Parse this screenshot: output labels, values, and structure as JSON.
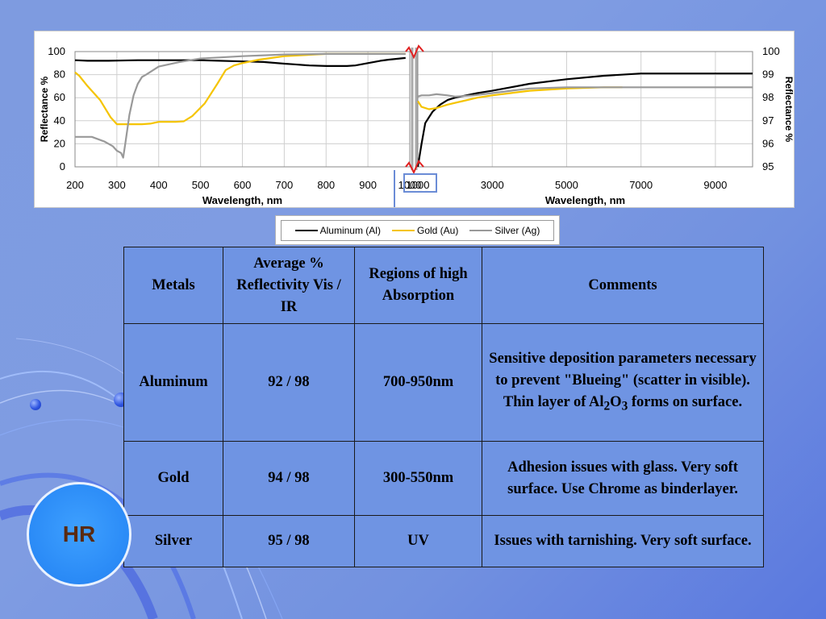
{
  "chart_data": {
    "type": "line",
    "panels": [
      {
        "xlabel": "Wavelength, nm",
        "ylabel": "Reflectance %",
        "xlim": [
          200,
          1000
        ],
        "ylim": [
          0,
          100
        ],
        "x_ticks": [
          "200",
          "300",
          "400",
          "500",
          "600",
          "700",
          "800",
          "900",
          "1000"
        ],
        "y_ticks": [
          "0",
          "20",
          "40",
          "60",
          "80",
          "100"
        ],
        "series": [
          {
            "name": "Aluminum (Al)",
            "color": "#000000",
            "x": [
              200,
              230,
              280,
              350,
              400,
              500,
              600,
              650,
              700,
              720,
              760,
              800,
              850,
              870,
              900,
              930,
              950,
              990
            ],
            "y": [
              92.5,
              92,
              92,
              92.5,
              92.5,
              92.5,
              91.5,
              91,
              89.5,
              89,
              88,
              87.5,
              87.5,
              88,
              90,
              92,
              93,
              94.5
            ]
          },
          {
            "name": "Gold (Au)",
            "color": "#f5c400",
            "x": [
              200,
              210,
              230,
              260,
              285,
              300,
              330,
              360,
              380,
              400,
              440,
              460,
              480,
              510,
              540,
              560,
              580,
              600,
              640,
              700,
              800,
              900,
              990
            ],
            "y": [
              82,
              79,
              70,
              58,
              43,
              37,
              37,
              37,
              37.5,
              39,
              39,
              39.5,
              44,
              55,
              72,
              84,
              88,
              90,
              93,
              96,
              98,
              98,
              98
            ]
          },
          {
            "name": "Silver (Ag)",
            "color": "#999999",
            "x": [
              200,
              240,
              270,
              290,
              300,
              310,
              315,
              320,
              330,
              340,
              350,
              360,
              370,
              400,
              450,
              500,
              600,
              700,
              800,
              900,
              990
            ],
            "y": [
              26,
              26,
              22,
              18,
              14,
              12,
              8,
              20,
              45,
              62,
              72,
              78,
              80,
              87,
              91,
              94,
              96,
              97.5,
              98,
              98,
              98
            ]
          }
        ]
      },
      {
        "xlabel": "Wavelength, nm",
        "ylabel": "Reflectance %",
        "xlim": [
          1000,
          10000
        ],
        "ylim": [
          95,
          100
        ],
        "x_ticks": [
          "1000",
          "3000",
          "5000",
          "7000",
          "9000"
        ],
        "y_ticks": [
          "95",
          "96",
          "97",
          "98",
          "99",
          "100"
        ],
        "series": [
          {
            "name": "Aluminum (Al)",
            "color": "#000000",
            "x": [
              1000,
              1100,
              1200,
              1400,
              1600,
              1800,
              2000,
              2300,
              2600,
              3000,
              3500,
              4000,
              5000,
              6000,
              7000,
              8000,
              9000,
              10000
            ],
            "y": [
              95.0,
              96.0,
              96.9,
              97.4,
              97.7,
              97.9,
              98.0,
              98.1,
              98.2,
              98.3,
              98.45,
              98.6,
              98.8,
              98.95,
              99.05,
              99.05,
              99.05,
              99.05
            ]
          },
          {
            "name": "Gold (Au)",
            "color": "#f5c400",
            "x": [
              1000,
              1100,
              1300,
              1500,
              1800,
              2200,
              2600,
              3000,
              3500,
              4000,
              5000,
              6000,
              6500
            ],
            "y": [
              97.85,
              97.6,
              97.5,
              97.55,
              97.7,
              97.85,
              98.0,
              98.1,
              98.2,
              98.3,
              98.4,
              98.45,
              98.45
            ]
          },
          {
            "name": "Silver (Ag)",
            "color": "#999999",
            "x": [
              1000,
              1100,
              1300,
              1500,
              1800,
              2000,
              2500,
              3000,
              3500,
              4000,
              5000,
              6000,
              7000,
              8000,
              9000,
              10000
            ],
            "y": [
              98.05,
              98.1,
              98.1,
              98.15,
              98.1,
              98.05,
              98.1,
              98.2,
              98.3,
              98.4,
              98.45,
              98.45,
              98.45,
              98.45,
              98.45,
              98.45
            ]
          }
        ]
      }
    ]
  },
  "legend": [
    {
      "label": "Aluminum (Al)",
      "color": "#000000"
    },
    {
      "label": "Gold (Au)",
      "color": "#f5c400"
    },
    {
      "label": "Silver (Ag)",
      "color": "#999999"
    }
  ],
  "table": {
    "headers": {
      "metals": "Metals",
      "reflectivity": "Average % Reflectivity Vis / IR",
      "absorption": "Regions of high Absorption",
      "comments": "Comments"
    },
    "rows": [
      {
        "metal": "Aluminum",
        "reflectivity": "92 / 98",
        "absorption": "700-950nm",
        "comment_a": "Sensitive deposition parameters necessary to prevent \"Blueing\" (scatter in visible). Thin layer of Al",
        "sub1": "2",
        "comment_b": "O",
        "sub2": "3",
        "comment_c": " forms on surface."
      },
      {
        "metal": "Gold",
        "reflectivity": "94 / 98",
        "absorption": "300-550nm",
        "comment": "Adhesion issues with glass. Very soft surface.  Use Chrome as binderlayer."
      },
      {
        "metal": "Silver",
        "reflectivity": "95 / 98",
        "absorption": "UV",
        "comment": "Issues with tarnishing.  Very soft surface."
      }
    ]
  },
  "badge": {
    "text": "HR"
  }
}
